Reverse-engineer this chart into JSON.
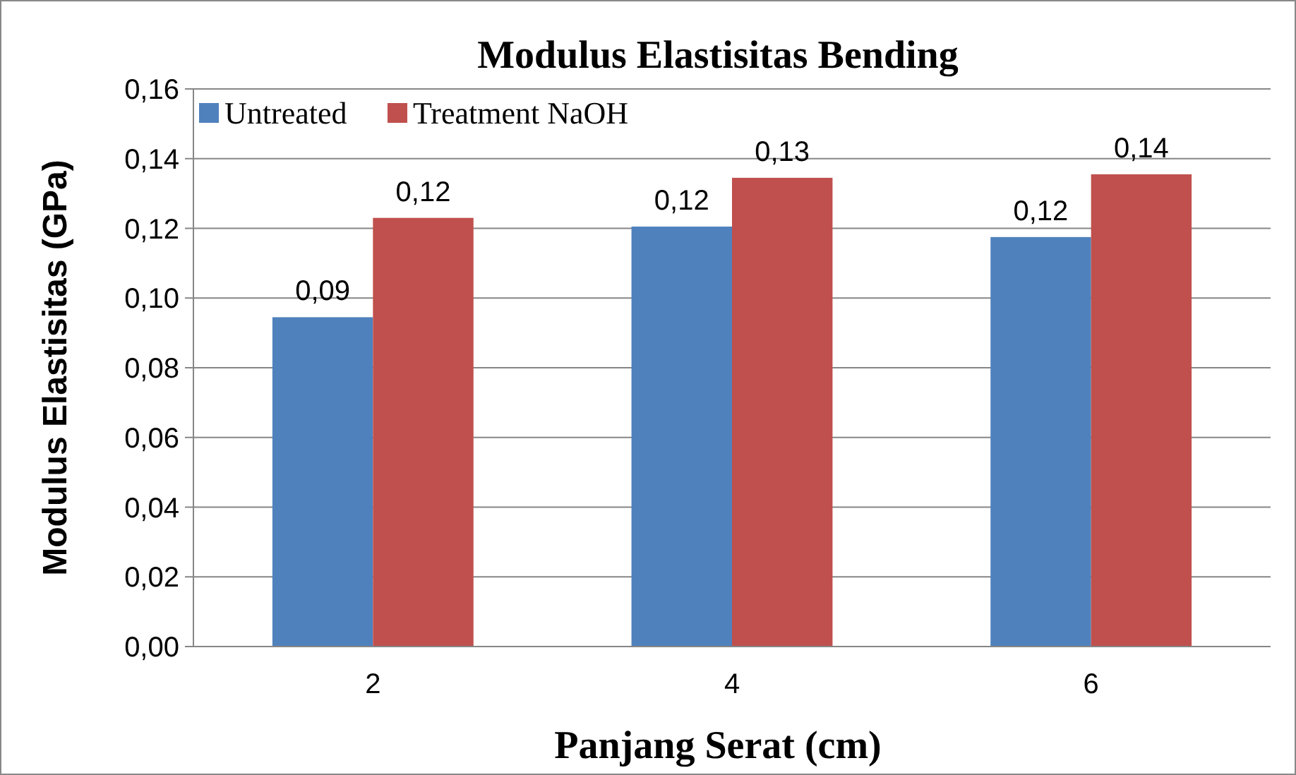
{
  "chart_data": {
    "type": "bar",
    "title": "Modulus Elastisitas Bending",
    "xlabel": "Panjang Serat (cm)",
    "ylabel": "Modulus Elastisitas  (GPa)",
    "categories": [
      "2",
      "4",
      "6"
    ],
    "series": [
      {
        "name": "Untreated",
        "color": "#4f81bd",
        "values": [
          0.0945,
          0.1205,
          0.1175
        ],
        "value_labels": [
          "0,09",
          "0,12",
          "0,12"
        ]
      },
      {
        "name": "Treatment NaOH",
        "color": "#c0504d",
        "values": [
          0.123,
          0.1345,
          0.1355
        ],
        "value_labels": [
          "0,12",
          "0,13",
          "0,14"
        ]
      }
    ],
    "ylim": [
      0,
      0.16
    ],
    "yticks": [
      {
        "value": 0,
        "label": "0,00"
      },
      {
        "value": 0.02,
        "label": "0,02"
      },
      {
        "value": 0.04,
        "label": "0,04"
      },
      {
        "value": 0.06,
        "label": "0,06"
      },
      {
        "value": 0.08,
        "label": "0,08"
      },
      {
        "value": 0.1,
        "label": "0,10"
      },
      {
        "value": 0.12,
        "label": "0,12"
      },
      {
        "value": 0.14,
        "label": "0,14"
      },
      {
        "value": 0.16,
        "label": "0,16"
      }
    ],
    "grid": "y",
    "legend": "top left"
  }
}
